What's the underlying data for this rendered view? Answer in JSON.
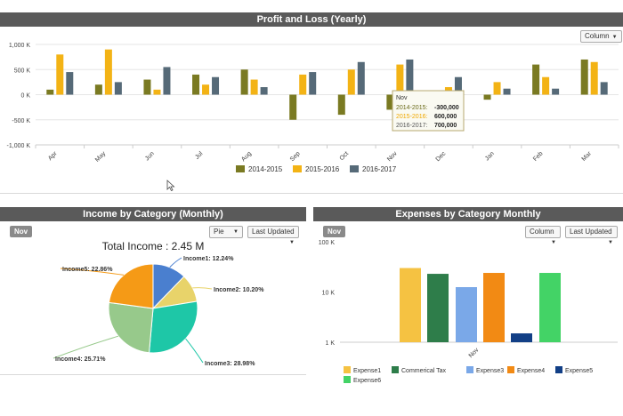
{
  "profit_loss": {
    "title": "Profit and Loss (Yearly)",
    "chart_type_select": "Column",
    "tooltip": {
      "header": "Nov",
      "rows": [
        {
          "label": "2014-2015:",
          "value": "-300,000",
          "color": "#6b6b1a"
        },
        {
          "label": "2015-2016:",
          "value": "600,000",
          "color": "#f0a800"
        },
        {
          "label": "2016-2017:",
          "value": "700,000",
          "color": "#555"
        }
      ]
    }
  },
  "income": {
    "title": "Income by Category (Monthly)",
    "period_button": "Nov",
    "chart_type_select": "Pie",
    "sort_select": "Last Updated",
    "total_label": "Total Income : 2.45 M"
  },
  "expenses": {
    "title": "Expenses by Category Monthly",
    "period_button": "Nov",
    "chart_type_select": "Column",
    "sort_select": "Last Updated"
  },
  "chart_data": [
    {
      "type": "bar",
      "title": "Profit and Loss (Yearly)",
      "categories": [
        "Apr",
        "May",
        "Jun",
        "Jul",
        "Aug",
        "Sep",
        "Oct",
        "Nov",
        "Dec",
        "Jan",
        "Feb",
        "Mar"
      ],
      "series": [
        {
          "name": "2014-2015",
          "color": "#7a7a22",
          "values": [
            100000,
            200000,
            300000,
            400000,
            500000,
            -500000,
            -400000,
            -300000,
            -50000,
            -100000,
            600000,
            700000
          ]
        },
        {
          "name": "2015-2016",
          "color": "#f3b315",
          "values": [
            800000,
            900000,
            100000,
            200000,
            300000,
            400000,
            500000,
            600000,
            150000,
            250000,
            350000,
            650000
          ]
        },
        {
          "name": "2016-2017",
          "color": "#566a78",
          "values": [
            450000,
            250000,
            550000,
            350000,
            150000,
            450000,
            650000,
            700000,
            350000,
            120000,
            120000,
            250000
          ]
        }
      ],
      "ylim": [
        -1000000,
        1000000
      ],
      "yticks": [
        {
          "value": 1000000,
          "label": "1,000 K"
        },
        {
          "value": 500000,
          "label": "500 K"
        },
        {
          "value": 0,
          "label": "0 K"
        },
        {
          "value": -500000,
          "label": "-500 K"
        },
        {
          "value": -1000000,
          "label": "-1,000 K"
        }
      ],
      "legend": "bottom",
      "grid": true
    },
    {
      "type": "pie",
      "title": "Income by Category (Monthly)",
      "slices": [
        {
          "name": "Income1",
          "percent": 12.24,
          "label": "Income1: 12.24%",
          "color": "#4a7fcf"
        },
        {
          "name": "Income2",
          "percent": 10.2,
          "label": "Income2: 10.20%",
          "color": "#e8d36a"
        },
        {
          "name": "Income3",
          "percent": 28.98,
          "label": "Income3: 28.98%",
          "color": "#1ec7a7"
        },
        {
          "name": "Income4",
          "percent": 25.71,
          "label": "Income4: 25.71%",
          "color": "#97c98b"
        },
        {
          "name": "Income5",
          "percent": 22.86,
          "label": "Income5: 22.86%",
          "color": "#f59a16"
        }
      ]
    },
    {
      "type": "bar",
      "title": "Expenses by Category Monthly",
      "categories": [
        "Nov"
      ],
      "yscale": "log",
      "ylim": [
        1000,
        100000
      ],
      "yticks": [
        {
          "value": 100000,
          "label": "100 K"
        },
        {
          "value": 10000,
          "label": "10 K"
        },
        {
          "value": 1000,
          "label": "1 K"
        }
      ],
      "series": [
        {
          "name": "Expense1",
          "color": "#f5c242",
          "values": [
            30000
          ]
        },
        {
          "name": "Commerical Tax",
          "color": "#2e7d4a",
          "values": [
            23000
          ]
        },
        {
          "name": "Expense3",
          "color": "#7aa8e8",
          "values": [
            12500
          ]
        },
        {
          "name": "Expense4",
          "color": "#f28a14",
          "values": [
            24000
          ]
        },
        {
          "name": "Expense5",
          "color": "#123f86",
          "values": [
            1500
          ]
        },
        {
          "name": "Expense6",
          "color": "#43d366",
          "values": [
            24000
          ]
        }
      ],
      "legend": "bottom"
    }
  ]
}
